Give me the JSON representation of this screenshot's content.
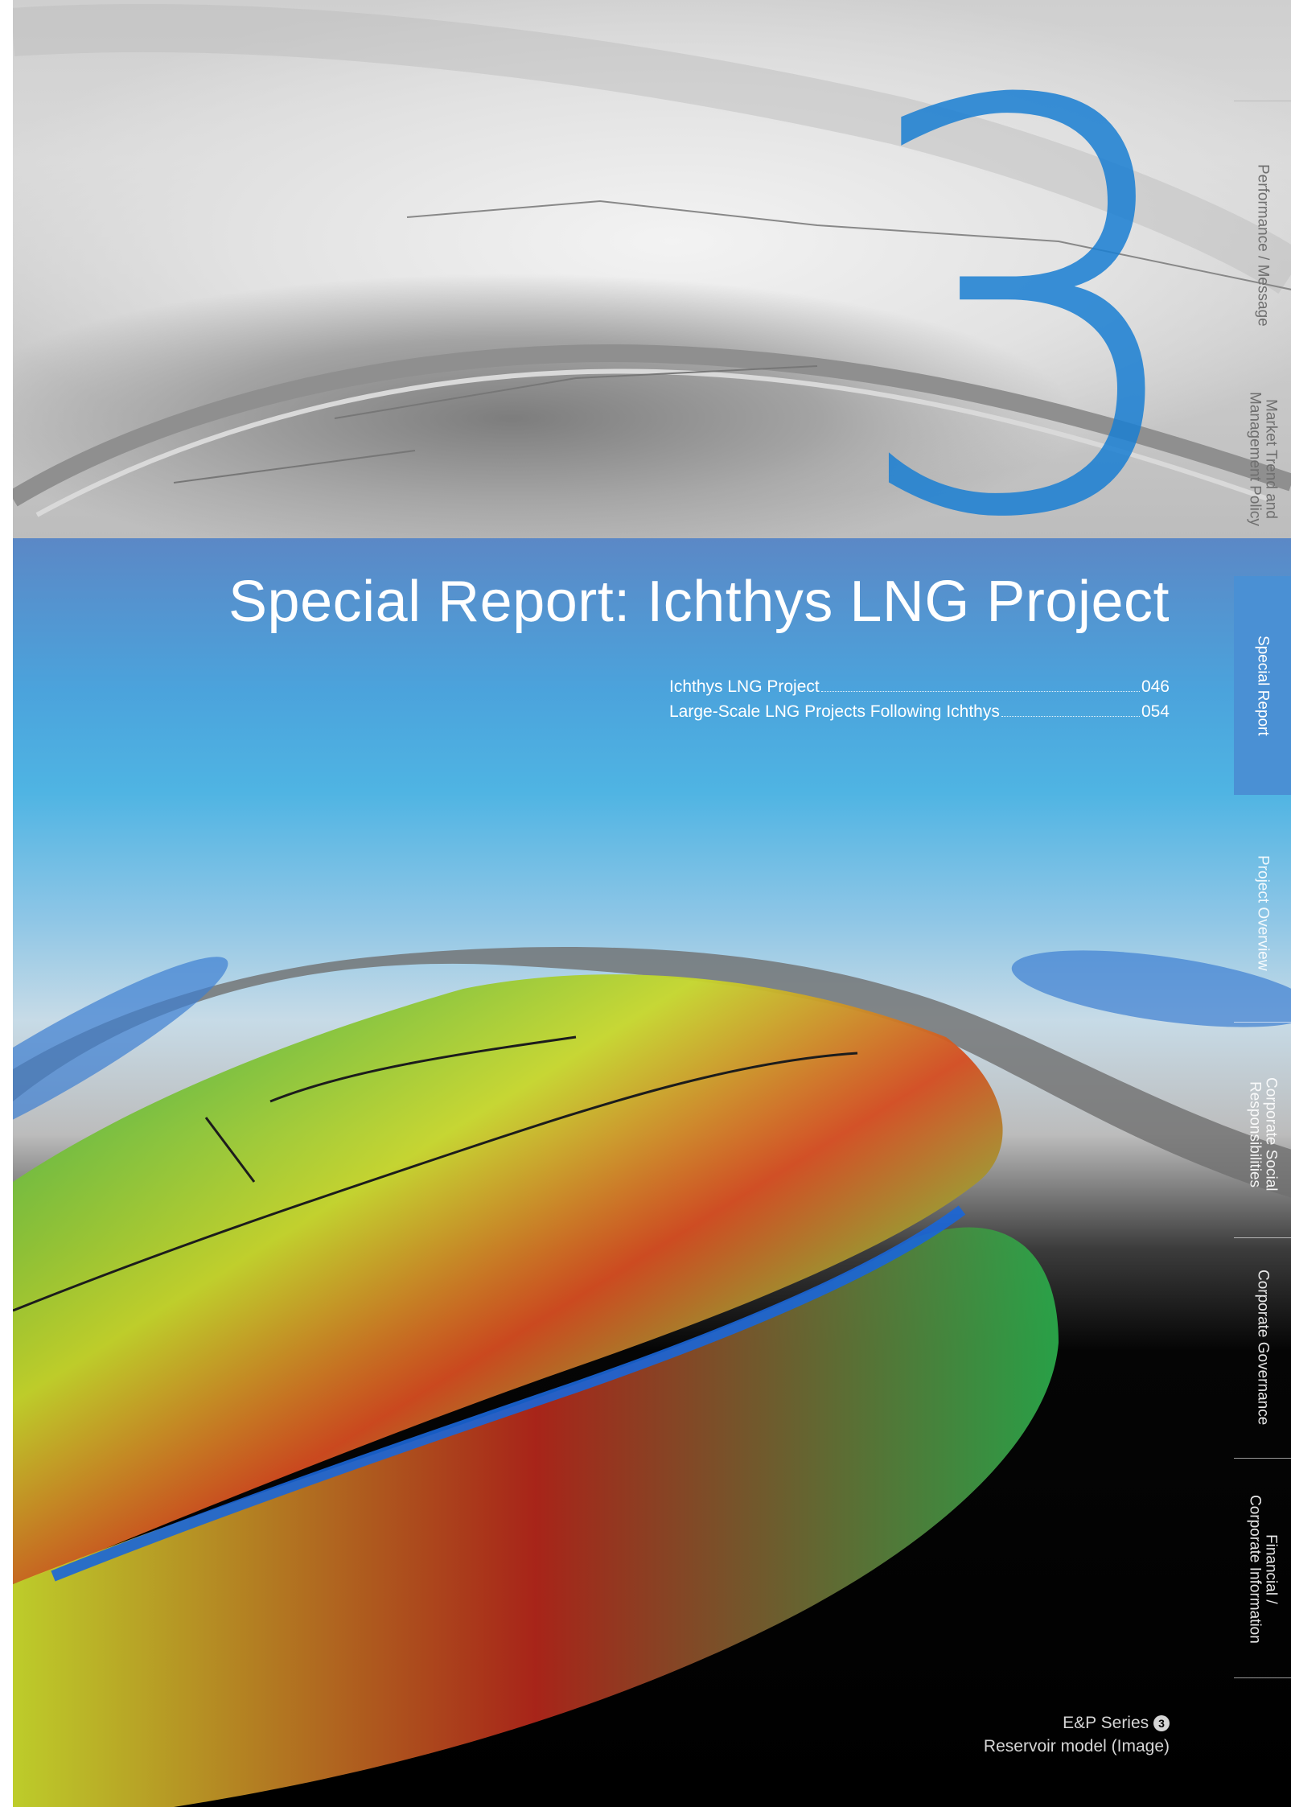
{
  "chapter": {
    "number": "3",
    "title": "Special Report: Ichthys LNG Project"
  },
  "toc": [
    {
      "label": "Ichthys LNG Project",
      "page": "046"
    },
    {
      "label": "Large-Scale LNG Projects Following Ichthys",
      "page": "054"
    }
  ],
  "side_nav": [
    {
      "label": "Performance / Message",
      "active": false
    },
    {
      "label": "Market Trend and\nManagement Policy",
      "active": false
    },
    {
      "label": "Special Report",
      "active": true
    },
    {
      "label": "Project Overview",
      "active": false
    },
    {
      "label": "Corporate Social\nResponsibilities",
      "active": false
    },
    {
      "label": "Corporate Governance",
      "active": false
    },
    {
      "label": "Financial /\nCorporate Information",
      "active": false
    }
  ],
  "caption": {
    "series": "E&P Series",
    "series_number": "3",
    "description": "Reservoir model (Image)"
  },
  "colors": {
    "accent_blue": "#1a7fd3",
    "active_tab": "#4a90d4"
  }
}
